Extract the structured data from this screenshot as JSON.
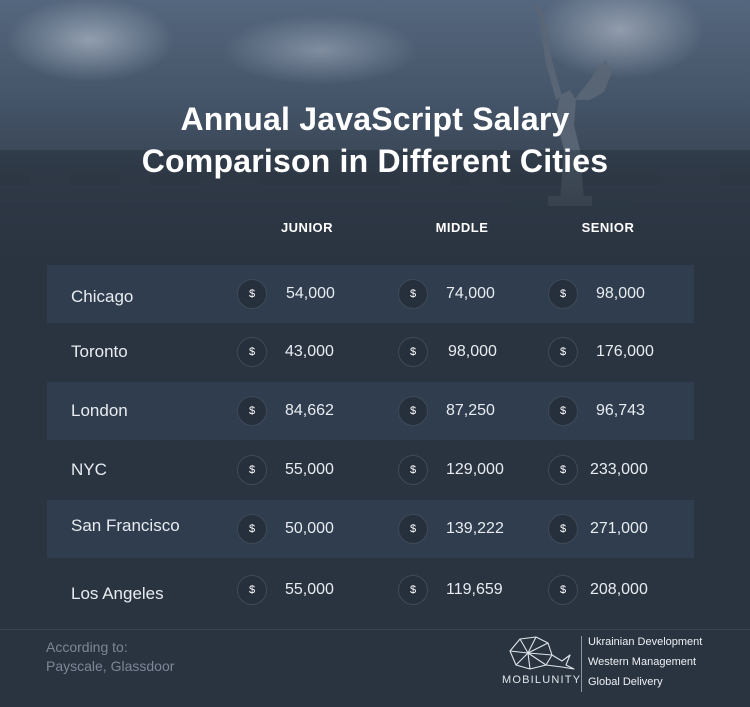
{
  "chart_data": {
    "type": "table",
    "title": "Annual JavaScript Salary Comparison in Different Cities",
    "columns": [
      "JUNIOR",
      "MIDDLE",
      "SENIOR"
    ],
    "currency_symbol": "$",
    "rows": [
      {
        "city": "Chicago",
        "junior": "54,000",
        "middle": "74,000",
        "senior": "98,000"
      },
      {
        "city": "Toronto",
        "junior": "43,000",
        "middle": "98,000",
        "senior": "176,000"
      },
      {
        "city": "London",
        "junior": "84,662",
        "middle": "87,250",
        "senior": "96,743"
      },
      {
        "city": "NYC",
        "junior": "55,000",
        "middle": "129,000",
        "senior": "233,000"
      },
      {
        "city": "San Francisco",
        "junior": "50,000",
        "middle": "139,222",
        "senior": "271,000"
      },
      {
        "city": "Los Angeles",
        "junior": "55,000",
        "middle": "119,659",
        "senior": "208,000"
      }
    ]
  },
  "header": {
    "title_line1": "Annual JavaScript Salary",
    "title_line2": "Comparison in Different Cities"
  },
  "footer": {
    "source_line1": "According to:",
    "source_line2": "Payscale, Glassdoor",
    "brand": "MOBILUNITY",
    "taglines": [
      "Ukrainian Development",
      "Western Management",
      "Global Delivery"
    ]
  },
  "colors": {
    "background": "#2a3441",
    "row_band": "#2f3d4e",
    "source_text": "#7c8796"
  },
  "icons": [
    "dollar-icon",
    "whale-logo-icon"
  ]
}
